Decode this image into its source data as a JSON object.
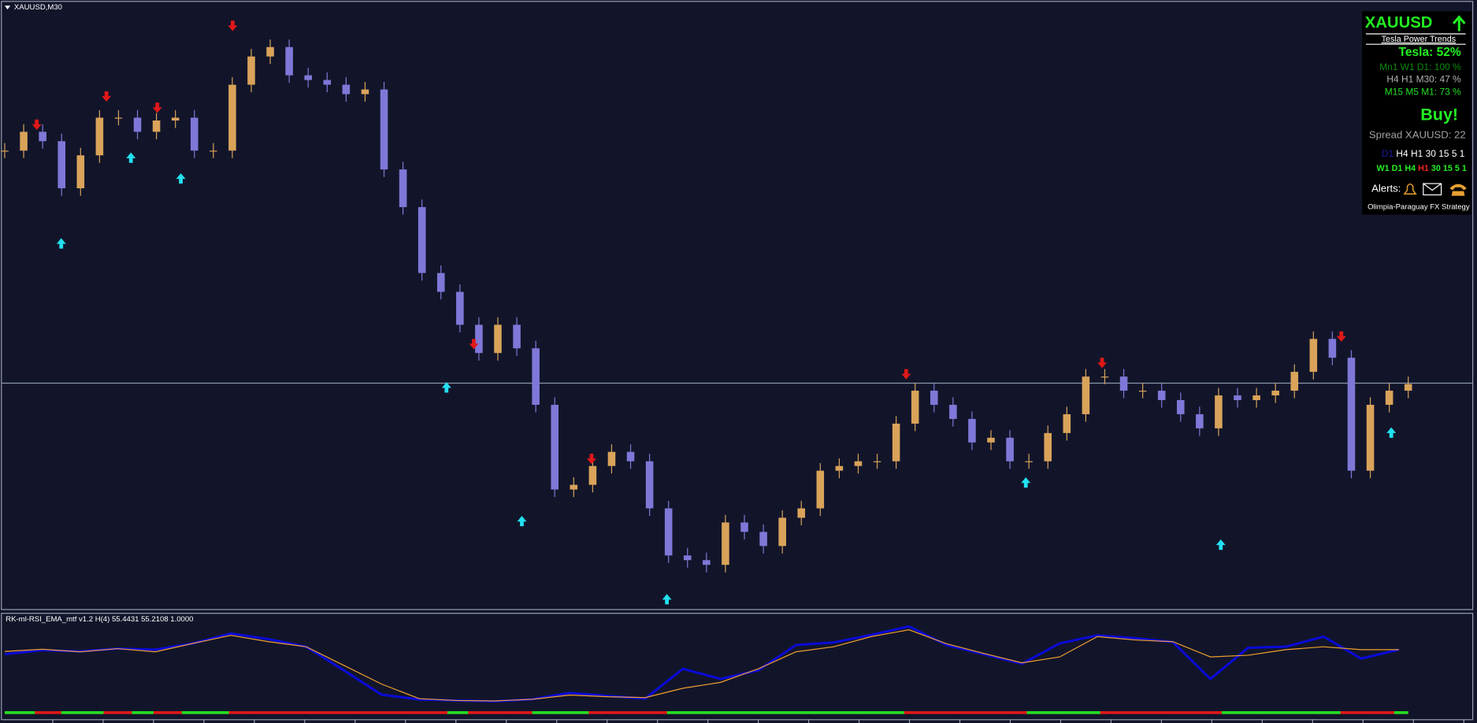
{
  "symbol_label": "XAUUSD,M30",
  "chart_data": [
    {
      "type": "candlestick",
      "closes": [
        490,
        510,
        500,
        450,
        485,
        525,
        525,
        510,
        522,
        525,
        490,
        490,
        560,
        590,
        600,
        570,
        565,
        560,
        550,
        555,
        470,
        430,
        360,
        340,
        305,
        275,
        305,
        280,
        220,
        130,
        135,
        155,
        170,
        160,
        110,
        60,
        55,
        50,
        95,
        85,
        70,
        100,
        110,
        150,
        155,
        160,
        160,
        200,
        235,
        220,
        205,
        180,
        185,
        160,
        160,
        190,
        210,
        250,
        250,
        235,
        235,
        225,
        210,
        195,
        230,
        225,
        230,
        235,
        255,
        290,
        270,
        150,
        220,
        235,
        242
      ]
    },
    {
      "type": "line",
      "title": "RK-ml-RSI_EMA_mtf v1.2 H(4) 55.4431 55.2108 1.0000",
      "ylim": [
        25,
        75
      ],
      "series": [
        {
          "color": "#0a0ad8",
          "values": [
            55.6,
            58,
            57.2,
            58.9,
            58.3,
            62,
            67.8,
            64.5,
            60,
            46.1,
            31.7,
            28.9,
            28.3,
            27.8,
            29,
            32.8,
            31,
            29.4,
            47,
            41,
            46.1,
            61,
            62.5,
            67,
            72,
            61,
            55.5,
            50,
            62,
            66.7,
            65,
            62.8,
            41,
            59.4,
            60,
            66,
            53,
            58.3
          ]
        },
        {
          "color": "#f0a030",
          "values": [
            57.2,
            58.5,
            57,
            58.9,
            57,
            62,
            66.7,
            63,
            60,
            49,
            38,
            29.4,
            28.3,
            28,
            29,
            31.5,
            30.5,
            30,
            35.5,
            39,
            47,
            57,
            60,
            66,
            70,
            61.7,
            56,
            50.5,
            54,
            66,
            64,
            63,
            54,
            55,
            58.3,
            60,
            58.3,
            58.3
          ]
        }
      ]
    }
  ],
  "panel": {
    "symbol": "XAUUSD",
    "subtitle": "Tesla Power Trends",
    "score": "Tesla: 52%",
    "rows": [
      "Mn1 W1 D1: 100 %",
      "H4 H1 M30: 47 %",
      "M15 M5 M1: 73 %"
    ],
    "signal": "Buy!",
    "spread": "Spread XAUUSD: 22",
    "tf_row1": [
      "D1",
      "H4",
      "H1",
      "30",
      "15",
      "5",
      "1"
    ],
    "tf_row2": [
      "W1",
      "D1",
      "H4",
      "H1",
      "30",
      "15",
      "5",
      "1"
    ],
    "alerts": "Alerts:",
    "footer": "Olimpia-Paraguay FX Strategy"
  }
}
